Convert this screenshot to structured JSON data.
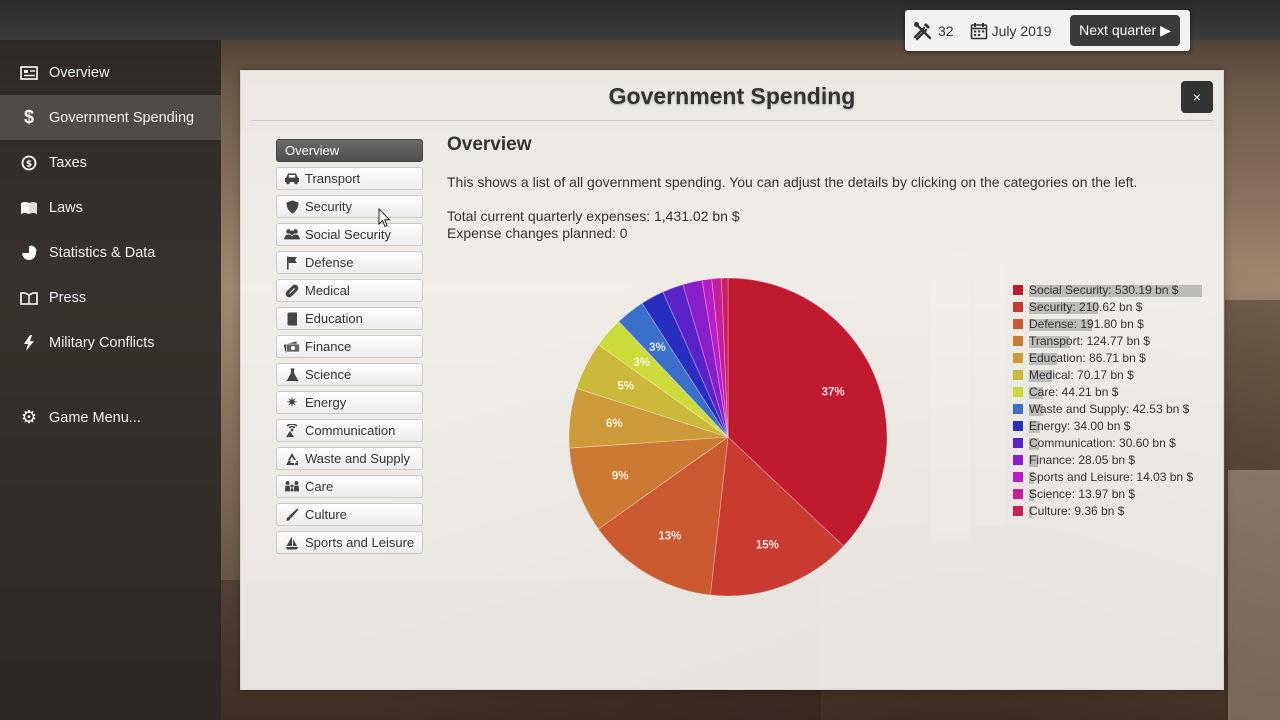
{
  "sidebar": {
    "items": [
      {
        "label": "Overview",
        "icon": "overview-icon"
      },
      {
        "label": "Government Spending",
        "icon": "dollar-icon",
        "active": true
      },
      {
        "label": "Taxes",
        "icon": "coin-icon"
      },
      {
        "label": "Laws",
        "icon": "book-icon"
      },
      {
        "label": "Statistics & Data",
        "icon": "pie-chart-icon"
      },
      {
        "label": "Press",
        "icon": "newspaper-icon"
      },
      {
        "label": "Military Conflicts",
        "icon": "lightning-icon"
      }
    ],
    "game_menu": {
      "label": "Game Menu...",
      "icon": "gear-icon"
    }
  },
  "status": {
    "count": "32",
    "date": "July 2019",
    "next_label": "Next quarter ▶"
  },
  "panel": {
    "title": "Government Spending",
    "close_label": "×",
    "categories": [
      {
        "label": "Overview"
      },
      {
        "label": "Transport",
        "icon": "car-icon"
      },
      {
        "label": "Security",
        "icon": "shield-icon"
      },
      {
        "label": "Social Security",
        "icon": "people-icon"
      },
      {
        "label": "Defense",
        "icon": "flag-icon"
      },
      {
        "label": "Medical",
        "icon": "pill-icon"
      },
      {
        "label": "Education",
        "icon": "book-icon"
      },
      {
        "label": "Finance",
        "icon": "money-icon"
      },
      {
        "label": "Science",
        "icon": "flask-icon"
      },
      {
        "label": "Energy",
        "icon": "sun-icon"
      },
      {
        "label": "Communication",
        "icon": "antenna-icon"
      },
      {
        "label": "Waste and Supply",
        "icon": "recycle-icon"
      },
      {
        "label": "Care",
        "icon": "family-icon"
      },
      {
        "label": "Culture",
        "icon": "brush-icon"
      },
      {
        "label": "Sports and Leisure",
        "icon": "sailboat-icon"
      }
    ],
    "content": {
      "title": "Overview",
      "description": "This shows a list of all government spending. You can adjust the details by clicking on the categories on the left.",
      "total_expenses": "Total current quarterly expenses: 1,431.02 bn $",
      "planned_changes": "Expense changes planned: 0"
    }
  },
  "chart_data": {
    "type": "pie",
    "series": [
      {
        "label": "Social Security: 530.19 bn $",
        "value": 530.19,
        "color": "#c01a30",
        "pct_label": "37%"
      },
      {
        "label": "Security: 210.62 bn $",
        "value": 210.62,
        "color": "#c93a30",
        "pct_label": "15%"
      },
      {
        "label": "Defense: 191.80 bn $",
        "value": 191.8,
        "color": "#cc5a30",
        "pct_label": "13%"
      },
      {
        "label": "Transport: 124.77 bn $",
        "value": 124.77,
        "color": "#cc7a33",
        "pct_label": "9%"
      },
      {
        "label": "Education: 86.71 bn $",
        "value": 86.71,
        "color": "#cc9a38",
        "pct_label": "6%"
      },
      {
        "label": "Medical: 70.17 bn $",
        "value": 70.17,
        "color": "#ccb83a",
        "pct_label": "5%"
      },
      {
        "label": "Care: 44.21 bn $",
        "value": 44.21,
        "color": "#cddb3a",
        "pct_label": "3%"
      },
      {
        "label": "Waste and Supply: 42.53 bn $",
        "value": 42.53,
        "color": "#3a70cc",
        "pct_label": "3%"
      },
      {
        "label": "Energy: 34.00 bn $",
        "value": 34.0,
        "color": "#2a2ec0",
        "pct_label": ""
      },
      {
        "label": "Communication: 30.60 bn $",
        "value": 30.6,
        "color": "#5a22c8",
        "pct_label": ""
      },
      {
        "label": "Finance: 28.05 bn $",
        "value": 28.05,
        "color": "#8a1ec8",
        "pct_label": ""
      },
      {
        "label": "Sports and Leisure: 14.03 bn $",
        "value": 14.03,
        "color": "#b81ec8",
        "pct_label": ""
      },
      {
        "label": "Science: 13.97 bn $",
        "value": 13.97,
        "color": "#c81e9a",
        "pct_label": ""
      },
      {
        "label": "Culture: 9.36 bn $",
        "value": 9.36,
        "color": "#c81e5a",
        "pct_label": ""
      }
    ]
  }
}
